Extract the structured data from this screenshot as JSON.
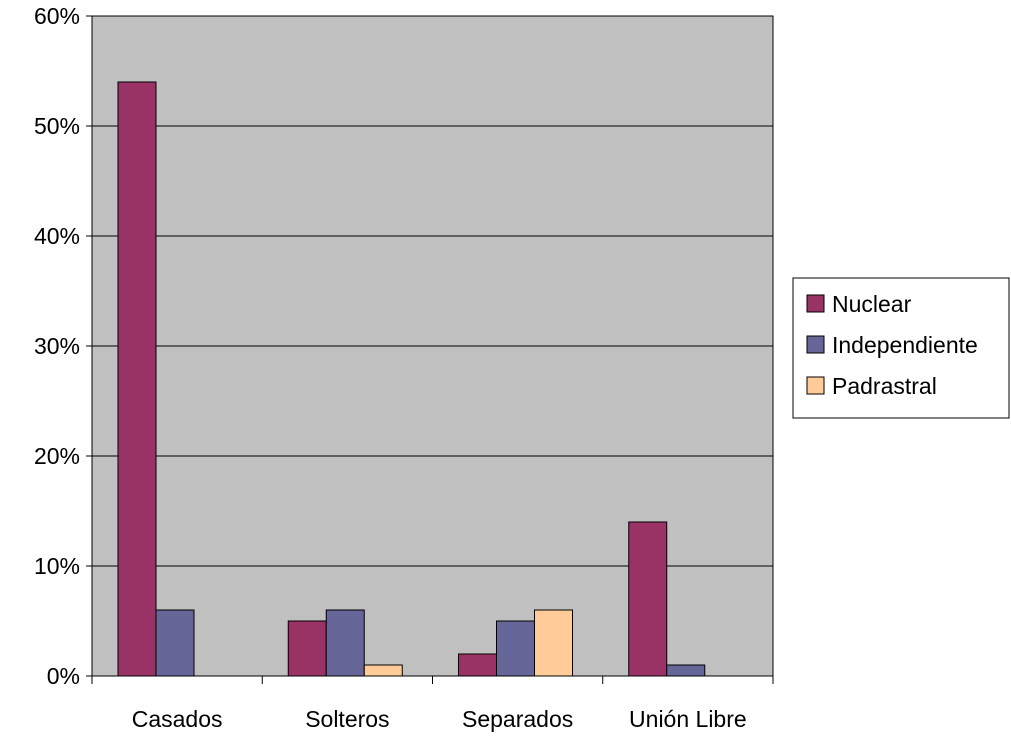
{
  "chart_data": {
    "type": "bar",
    "title": "",
    "xlabel": "",
    "ylabel": "",
    "categories": [
      "Casados",
      "Solteros",
      "Separados",
      "Unión Libre"
    ],
    "series": [
      {
        "name": "Nuclear",
        "values": [
          54,
          5,
          2,
          14
        ],
        "color": "#993366"
      },
      {
        "name": "Independiente",
        "values": [
          6,
          6,
          5,
          1
        ],
        "color": "#666699"
      },
      {
        "name": "Padrastral",
        "values": [
          0,
          1,
          6,
          0
        ],
        "color": "#FFCC99"
      }
    ],
    "value_format": "percent",
    "ylim": [
      0,
      60
    ],
    "yticks": [
      0,
      10,
      20,
      30,
      40,
      50,
      60
    ],
    "ytick_labels": [
      "0%",
      "10%",
      "20%",
      "30%",
      "40%",
      "50%",
      "60%"
    ],
    "grid": true,
    "plot_background": "#C0C0C0",
    "legend_position": "right"
  }
}
